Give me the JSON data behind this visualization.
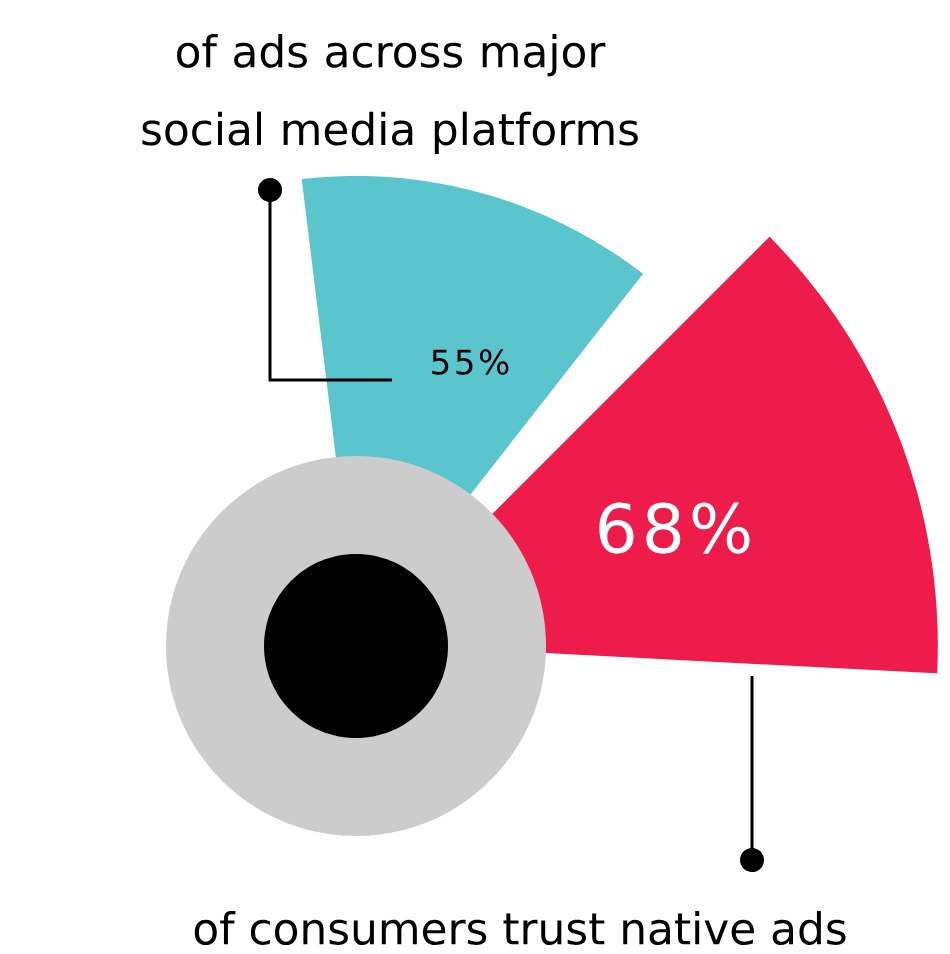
{
  "chart_data": {
    "type": "other",
    "categories": [
      "of ads across major social media platforms",
      "of consumers trust native ads"
    ],
    "values": [
      55,
      68
    ],
    "value_labels": [
      "55%",
      "68%"
    ],
    "colors": [
      "#5bc5cd",
      "#ee1c4a"
    ]
  }
}
